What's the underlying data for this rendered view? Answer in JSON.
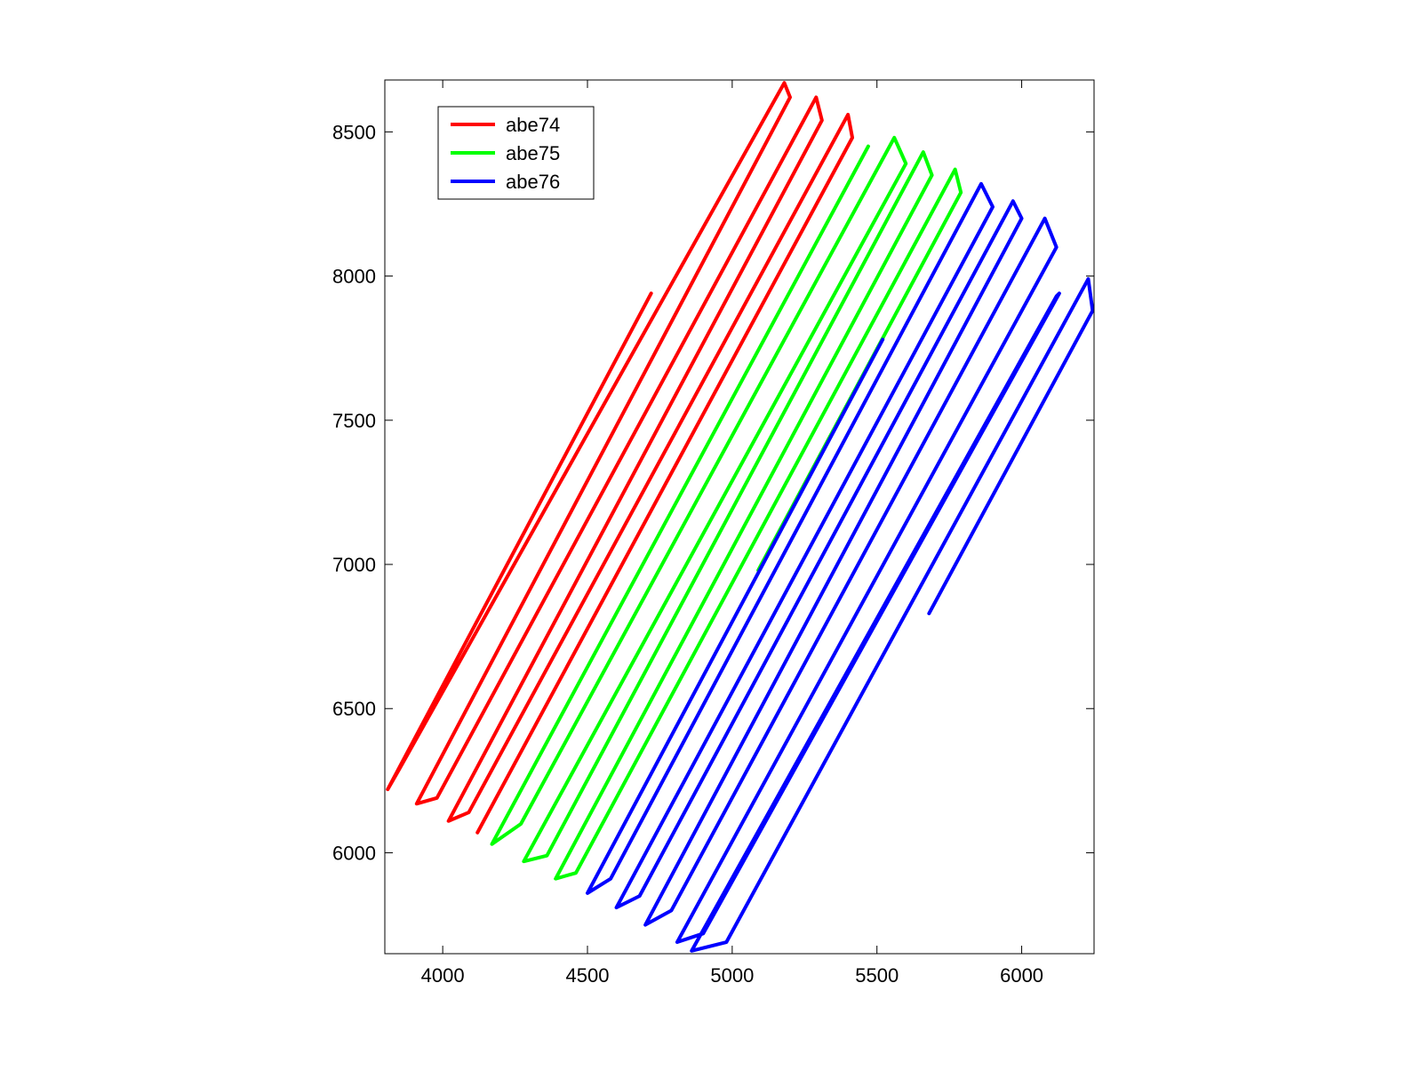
{
  "chart_data": {
    "type": "line",
    "xlim": [
      3800,
      6250
    ],
    "ylim": [
      5650,
      8680
    ],
    "xticks": [
      4000,
      4500,
      5000,
      5500,
      6000
    ],
    "yticks": [
      6000,
      6500,
      7000,
      7500,
      8000,
      8500
    ],
    "legend": "northwest",
    "grid": false,
    "series": [
      {
        "name": "abe74",
        "color": "#ff0000",
        "x": [
          4720,
          3810,
          3850,
          5180,
          5200,
          3910,
          3980,
          5290,
          5310,
          4020,
          4090,
          5400,
          5415,
          4120
        ],
        "values": [
          7940,
          6220,
          6290,
          8670,
          8620,
          6170,
          6190,
          8620,
          8540,
          6110,
          6140,
          8560,
          8480,
          6070
        ]
      },
      {
        "name": "abe75",
        "color": "#00ff00",
        "x": [
          5470,
          4170,
          4270,
          5560,
          5600,
          4280,
          4360,
          5660,
          5690,
          4390,
          4460,
          5770,
          5790,
          5090
        ],
        "values": [
          8450,
          6030,
          6100,
          8480,
          8390,
          5970,
          5990,
          8430,
          8350,
          5910,
          5930,
          8370,
          8290,
          6980
        ]
      },
      {
        "name": "abe76",
        "color": "#0000ff",
        "x": [
          5520,
          4500,
          4580,
          5860,
          5900,
          4600,
          4680,
          5970,
          6000,
          4700,
          4790,
          6080,
          6120,
          4810,
          4900,
          6130,
          6120,
          4860,
          4980,
          6230,
          6245,
          5680
        ],
        "values": [
          7780,
          5860,
          5910,
          8320,
          8240,
          5810,
          5850,
          8260,
          8200,
          5750,
          5800,
          8200,
          8100,
          5690,
          5720,
          7940,
          7930,
          5660,
          5690,
          7990,
          7880,
          6830
        ]
      }
    ]
  }
}
